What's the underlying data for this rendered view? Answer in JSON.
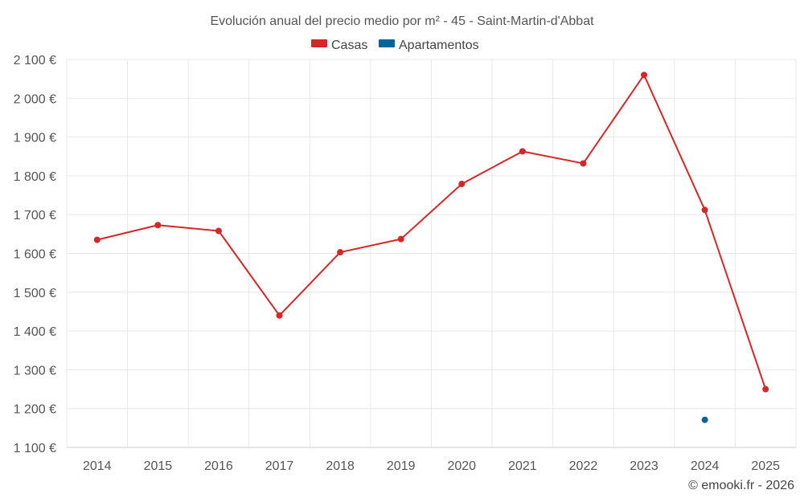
{
  "chart_data": {
    "type": "line",
    "title": "Evolución anual del precio medio por m² - 45 - Saint-Martin-d'Abbat",
    "categories": [
      "2014",
      "2015",
      "2016",
      "2017",
      "2018",
      "2019",
      "2020",
      "2021",
      "2022",
      "2023",
      "2024",
      "2025"
    ],
    "series": [
      {
        "name": "Casas",
        "color": "#d62728",
        "values": [
          1635,
          1673,
          1658,
          1440,
          1603,
          1637,
          1779,
          1863,
          1832,
          2060,
          1712,
          1250
        ]
      },
      {
        "name": "Apartamentos",
        "color": "#006699",
        "values": [
          null,
          null,
          null,
          null,
          null,
          null,
          null,
          null,
          null,
          null,
          1171,
          null
        ]
      }
    ],
    "ylim": [
      1100,
      2100
    ],
    "yticks": [
      1100,
      1200,
      1300,
      1400,
      1500,
      1600,
      1700,
      1800,
      1900,
      2000,
      2100
    ],
    "ytick_labels": [
      "1 100 €",
      "1 200 €",
      "1 300 €",
      "1 400 €",
      "1 500 €",
      "1 600 €",
      "1 700 €",
      "1 800 €",
      "1 900 €",
      "2 000 €",
      "2 100 €"
    ],
    "legend_position": "top",
    "grid": true,
    "credit": "© emooki.fr - 2026"
  }
}
